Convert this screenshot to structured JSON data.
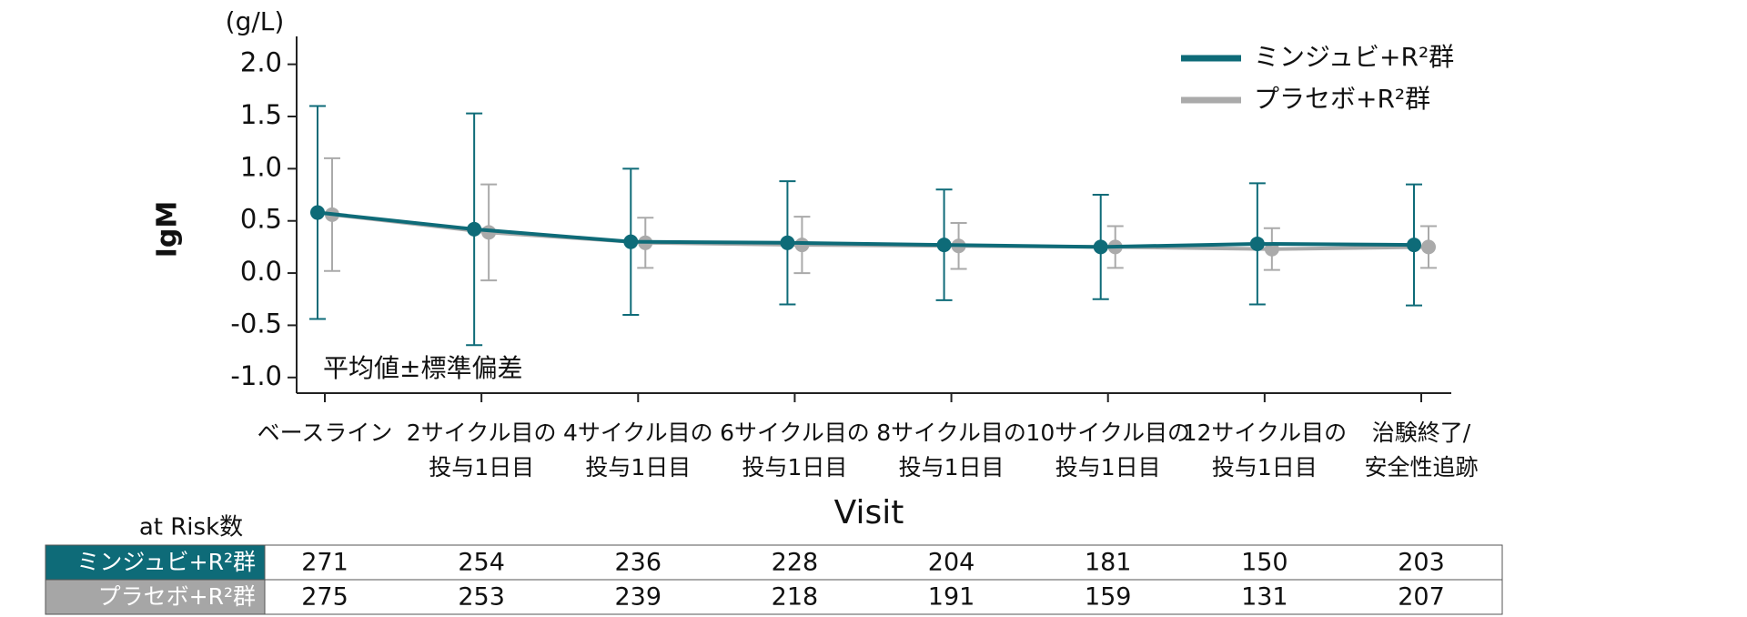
{
  "chart_data": {
    "type": "line-errorbar",
    "y_unit": "(g/L)",
    "ylabel": "IgM",
    "xlabel": "Visit",
    "annotation": "平均値±標準偏差",
    "categories": [
      [
        "ベースライン"
      ],
      [
        "2サイクル目の",
        "投与1日目"
      ],
      [
        "4サイクル目の",
        "投与1日目"
      ],
      [
        "6サイクル目の",
        "投与1日目"
      ],
      [
        "8サイクル目の",
        "投与1日目"
      ],
      [
        "10サイクル目の",
        "投与1日目"
      ],
      [
        "12サイクル目の",
        "投与1日目"
      ],
      [
        "治験終了/",
        "安全性追跡"
      ]
    ],
    "series": [
      {
        "name": "ミンジュビ+R²群",
        "color": "#0e6b78",
        "values": [
          0.58,
          0.42,
          0.3,
          0.29,
          0.27,
          0.25,
          0.28,
          0.27
        ],
        "errors": [
          1.02,
          1.11,
          0.7,
          0.59,
          0.53,
          0.5,
          0.58,
          0.58
        ]
      },
      {
        "name": "プラセボ+R²群",
        "color": "#aaaaaa",
        "values": [
          0.56,
          0.39,
          0.29,
          0.27,
          0.26,
          0.25,
          0.23,
          0.25
        ],
        "errors": [
          0.54,
          0.46,
          0.24,
          0.27,
          0.22,
          0.2,
          0.2,
          0.2
        ]
      }
    ],
    "ylim": [
      -1.15,
      2.18
    ],
    "yticks": [
      {
        "value": 2,
        "label": "2.0"
      },
      1.5,
      {
        "value": 1,
        "label": "1.0"
      },
      0.5,
      {
        "value": 0,
        "label": "0.0"
      },
      -0.5,
      {
        "value": -1,
        "label": "-1.0"
      }
    ],
    "legend": "upper right"
  },
  "risk_table": {
    "title": "at Risk数",
    "rows": [
      {
        "name": "ミンジュビ+R²群",
        "color": "#0e6b78",
        "values": [
          271,
          254,
          236,
          228,
          204,
          181,
          150,
          203
        ]
      },
      {
        "name": "プラセボ+R²群",
        "color": "#a6a6a6",
        "values": [
          275,
          253,
          239,
          218,
          191,
          159,
          131,
          207
        ]
      }
    ]
  }
}
